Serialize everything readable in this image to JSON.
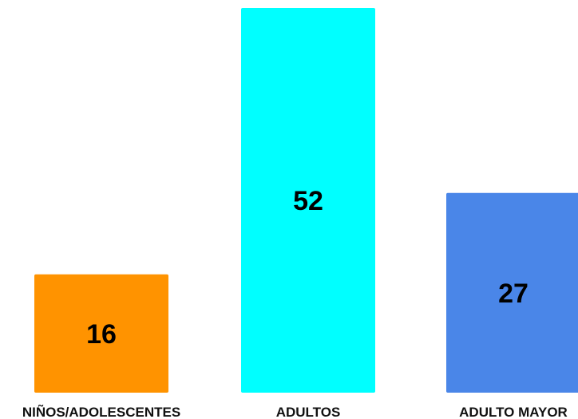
{
  "chart_data": {
    "type": "bar",
    "title": "",
    "xlabel": "",
    "ylabel": "",
    "categories": [
      "NIÑOS/ADOLESCENTES",
      "ADULTOS",
      "ADULTO MAYOR"
    ],
    "values": [
      16,
      52,
      27
    ],
    "value_labels": [
      "16",
      "52",
      "27"
    ],
    "colors": [
      "#ff9300",
      "#00ffff",
      "#4a86e8"
    ],
    "ylim": [
      0,
      52
    ],
    "grid": false,
    "legend": false
  }
}
